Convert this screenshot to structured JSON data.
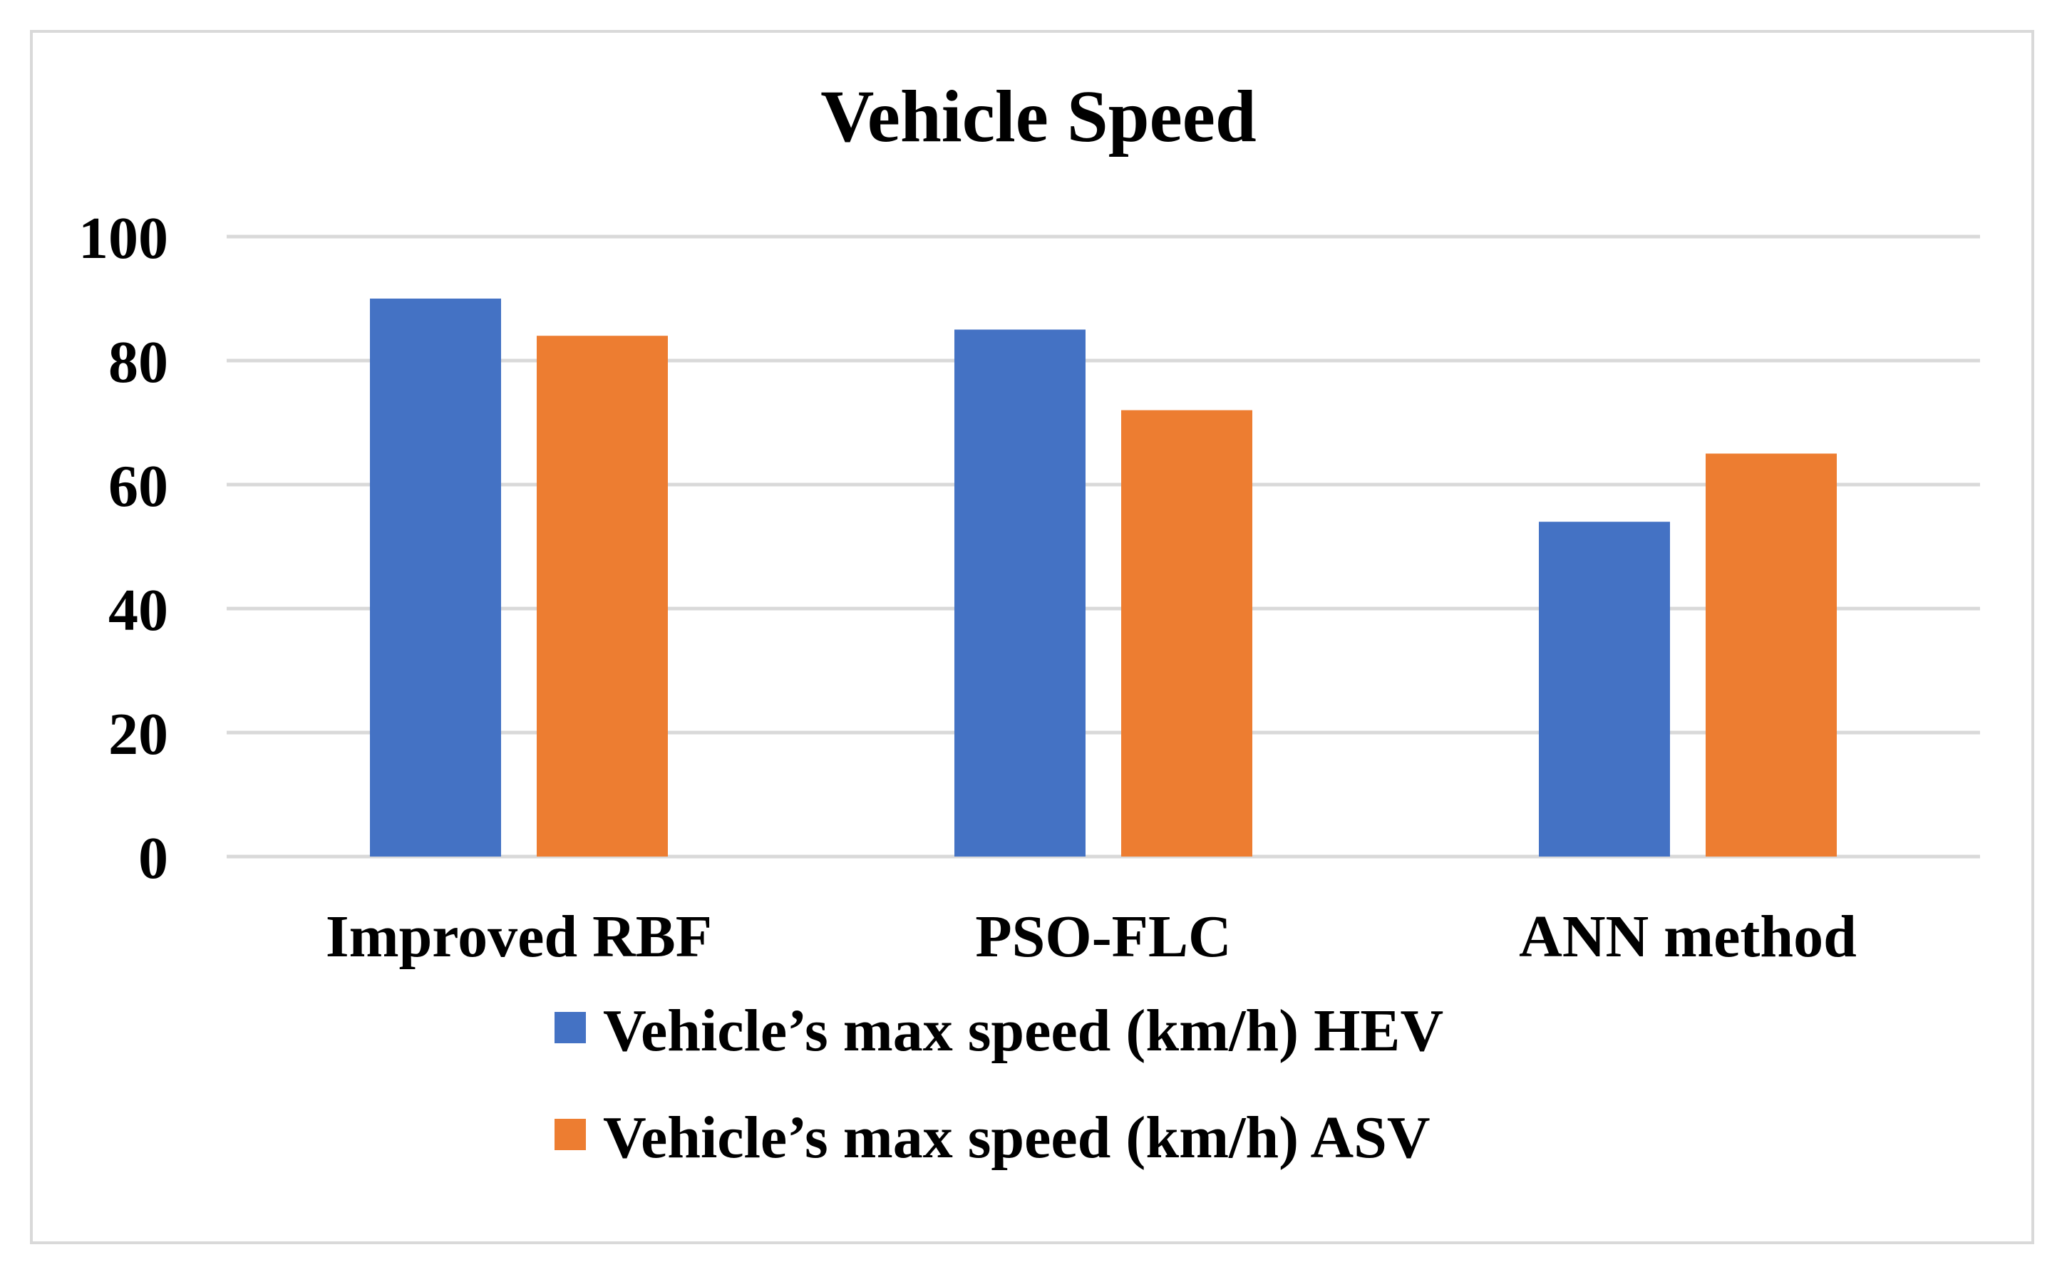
{
  "chart_data": {
    "type": "bar",
    "title": "Vehicle Speed",
    "xlabel": "",
    "ylabel": "",
    "categories": [
      "Improved RBF",
      "PSO-FLC",
      "ANN method"
    ],
    "series": [
      {
        "name": "Vehicle’s max speed (km/h) HEV",
        "values": [
          90,
          85,
          54
        ],
        "color": "#4472C4"
      },
      {
        "name": "Vehicle’s max speed (km/h) ASV",
        "values": [
          84,
          72,
          65
        ],
        "color": "#ED7D31"
      }
    ],
    "ylim": [
      0,
      100
    ],
    "yticks": [
      0,
      20,
      40,
      60,
      80,
      100
    ],
    "grid": true,
    "legend": "bottom"
  }
}
